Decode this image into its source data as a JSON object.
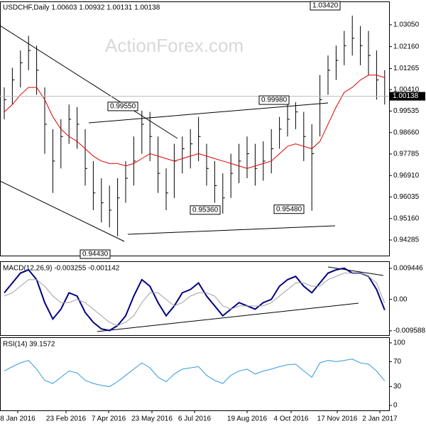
{
  "chart_data": [
    {
      "type": "ohlc",
      "title": "USDCHF,Daily 1.00603 1.00932 1.00131 1.00138",
      "watermark": "ActionForex.com",
      "xticks": [
        "8 Jan 2016",
        "23 Feb 2016",
        "7 Apr 2016",
        "23 May 2016",
        "6 Jul 2016",
        "19 Aug 2016",
        "4 Oct 2016",
        "17 Nov 2016",
        "2 Jan 2017"
      ],
      "ylim": [
        0.9365,
        1.04
      ],
      "yticks": [
        {
          "value": 1.0305,
          "label": "1.03050"
        },
        {
          "value": 1.0216,
          "label": "1.02160"
        },
        {
          "value": 1.01265,
          "label": "1.01265"
        },
        {
          "value": 1.0041,
          "label": "1.00410"
        },
        {
          "value": 0.99535,
          "label": "0.99535"
        },
        {
          "value": 0.9866,
          "label": "0.98660"
        },
        {
          "value": 0.97785,
          "label": "0.97785"
        },
        {
          "value": 0.9691,
          "label": "0.96910"
        },
        {
          "value": 0.96035,
          "label": "0.96035"
        },
        {
          "value": 0.9516,
          "label": "0.95160"
        },
        {
          "value": 0.94285,
          "label": "0.94285"
        }
      ],
      "color": "#000000",
      "high": [
        1.005,
        1.013,
        1.02,
        1.026,
        1.022,
        1.005,
        0.988,
        0.992,
        0.998,
        0.997,
        0.988,
        0.975,
        0.968,
        0.965,
        0.968,
        0.975,
        0.985,
        0.9955,
        0.995,
        0.985,
        0.972,
        0.982,
        0.985,
        0.988,
        0.993,
        0.982,
        0.975,
        0.97,
        0.978,
        0.982,
        0.985,
        0.982,
        0.983,
        0.988,
        0.993,
        0.998,
        0.999,
        0.995,
        0.99,
        1.01,
        1.018,
        1.022,
        1.028,
        1.0342,
        1.03,
        1.028,
        1.02,
        1.012
      ],
      "low": [
        0.992,
        0.998,
        1.005,
        1.012,
        1.002,
        0.978,
        0.962,
        0.972,
        0.982,
        0.98,
        0.965,
        0.955,
        0.95,
        0.948,
        0.9443,
        0.958,
        0.965,
        0.978,
        0.975,
        0.962,
        0.955,
        0.96,
        0.97,
        0.972,
        0.975,
        0.965,
        0.958,
        0.9536,
        0.96,
        0.966,
        0.968,
        0.965,
        0.967,
        0.97,
        0.98,
        0.985,
        0.988,
        0.975,
        0.9548,
        0.985,
        1.002,
        1.008,
        1.014,
        1.018,
        1.014,
        1.01,
        1.0,
        0.998
      ],
      "close": [
        1.0,
        1.008,
        1.015,
        1.02,
        1.012,
        0.99,
        0.975,
        0.985,
        0.992,
        0.99,
        0.972,
        0.962,
        0.958,
        0.955,
        0.96,
        0.968,
        0.975,
        0.99,
        0.985,
        0.97,
        0.962,
        0.975,
        0.98,
        0.982,
        0.985,
        0.972,
        0.965,
        0.96,
        0.97,
        0.975,
        0.978,
        0.972,
        0.975,
        0.98,
        0.988,
        0.992,
        0.995,
        0.985,
        0.978,
        1.0,
        1.012,
        1.016,
        1.022,
        1.025,
        1.022,
        1.018,
        1.008,
        1.00138
      ],
      "ma": {
        "color": "#e00000",
        "values": [
          0.995,
          0.998,
          1.002,
          1.005,
          1.005,
          1.0,
          0.993,
          0.988,
          0.985,
          0.983,
          0.98,
          0.977,
          0.975,
          0.974,
          0.974,
          0.973,
          0.974,
          0.976,
          0.978,
          0.977,
          0.976,
          0.975,
          0.976,
          0.977,
          0.978,
          0.977,
          0.976,
          0.975,
          0.974,
          0.973,
          0.972,
          0.973,
          0.974,
          0.975,
          0.978,
          0.981,
          0.982,
          0.981,
          0.98,
          0.983,
          0.99,
          0.997,
          1.003,
          1.005,
          1.008,
          1.01,
          1.01,
          1.009
        ]
      },
      "annotations": [
        {
          "value": 1.0342,
          "label": "1.03420"
        },
        {
          "value": 0.9955,
          "label": "0.99550"
        },
        {
          "value": 0.9998,
          "label": "0.99980"
        },
        {
          "value": 0.9536,
          "label": "0.95360"
        },
        {
          "value": 0.9548,
          "label": "0.95480"
        },
        {
          "value": 0.9443,
          "label": "0.94430"
        }
      ]
    },
    {
      "type": "line",
      "title": "MACD(12,26,9) -0.003255 -0.001142",
      "ylim": [
        -0.0109,
        0.0116
      ],
      "yticks": [
        0.009446,
        {
          "value": 0,
          "label": "0.00"
        },
        -0.009588
      ],
      "series": [
        {
          "color": "#000080",
          "values": [
            0.002,
            0.005,
            0.008,
            0.009,
            0.006,
            -0.001,
            -0.006,
            -0.003,
            0.002,
            0.001,
            -0.004,
            -0.007,
            -0.009,
            -0.0095,
            -0.008,
            -0.005,
            0.001,
            0.006,
            0.004,
            -0.001,
            -0.005,
            -0.002,
            0.002,
            0.003,
            0.005,
            0.001,
            -0.002,
            -0.005,
            -0.003,
            -0.001,
            -0.002,
            -0.003,
            -0.001,
            0,
            0.004,
            0.006,
            0.007,
            0.004,
            0.002,
            0.005,
            0.008,
            0.009,
            0.0095,
            0.008,
            0.008,
            0.007,
            0.003,
            -0.003255
          ]
        },
        {
          "color": "#a0a0a0",
          "values": [
            0.001,
            0.002,
            0.004,
            0.006,
            0.006,
            0.004,
            0.001,
            -0.001,
            -0.001,
            0,
            -0.001,
            -0.003,
            -0.005,
            -0.007,
            -0.008,
            -0.007,
            -0.005,
            -0.001,
            0.002,
            0.002,
            0,
            -0.002,
            -0.001,
            0.001,
            0.002,
            0.002,
            0.001,
            -0.002,
            -0.003,
            -0.002,
            -0.002,
            -0.002,
            -0.002,
            -0.001,
            0.001,
            0.003,
            0.005,
            0.005,
            0.004,
            0.004,
            0.006,
            0.007,
            0.008,
            0.008,
            0.008,
            0.007,
            0.005,
            -0.001142
          ]
        }
      ]
    },
    {
      "type": "line",
      "title": "RSI(14) 39.1572",
      "ylim": [
        -8,
        109
      ],
      "yticks": [
        100,
        70,
        30,
        0
      ],
      "series": [
        {
          "color": "#3399dd",
          "values": [
            55,
            62,
            68,
            72,
            58,
            40,
            35,
            45,
            55,
            52,
            40,
            35,
            32,
            30,
            38,
            48,
            58,
            68,
            60,
            45,
            38,
            50,
            58,
            60,
            62,
            48,
            40,
            35,
            48,
            55,
            58,
            50,
            55,
            58,
            62,
            65,
            66,
            55,
            45,
            68,
            72,
            70,
            72,
            74,
            68,
            66,
            55,
            39.1572
          ]
        }
      ]
    }
  ]
}
